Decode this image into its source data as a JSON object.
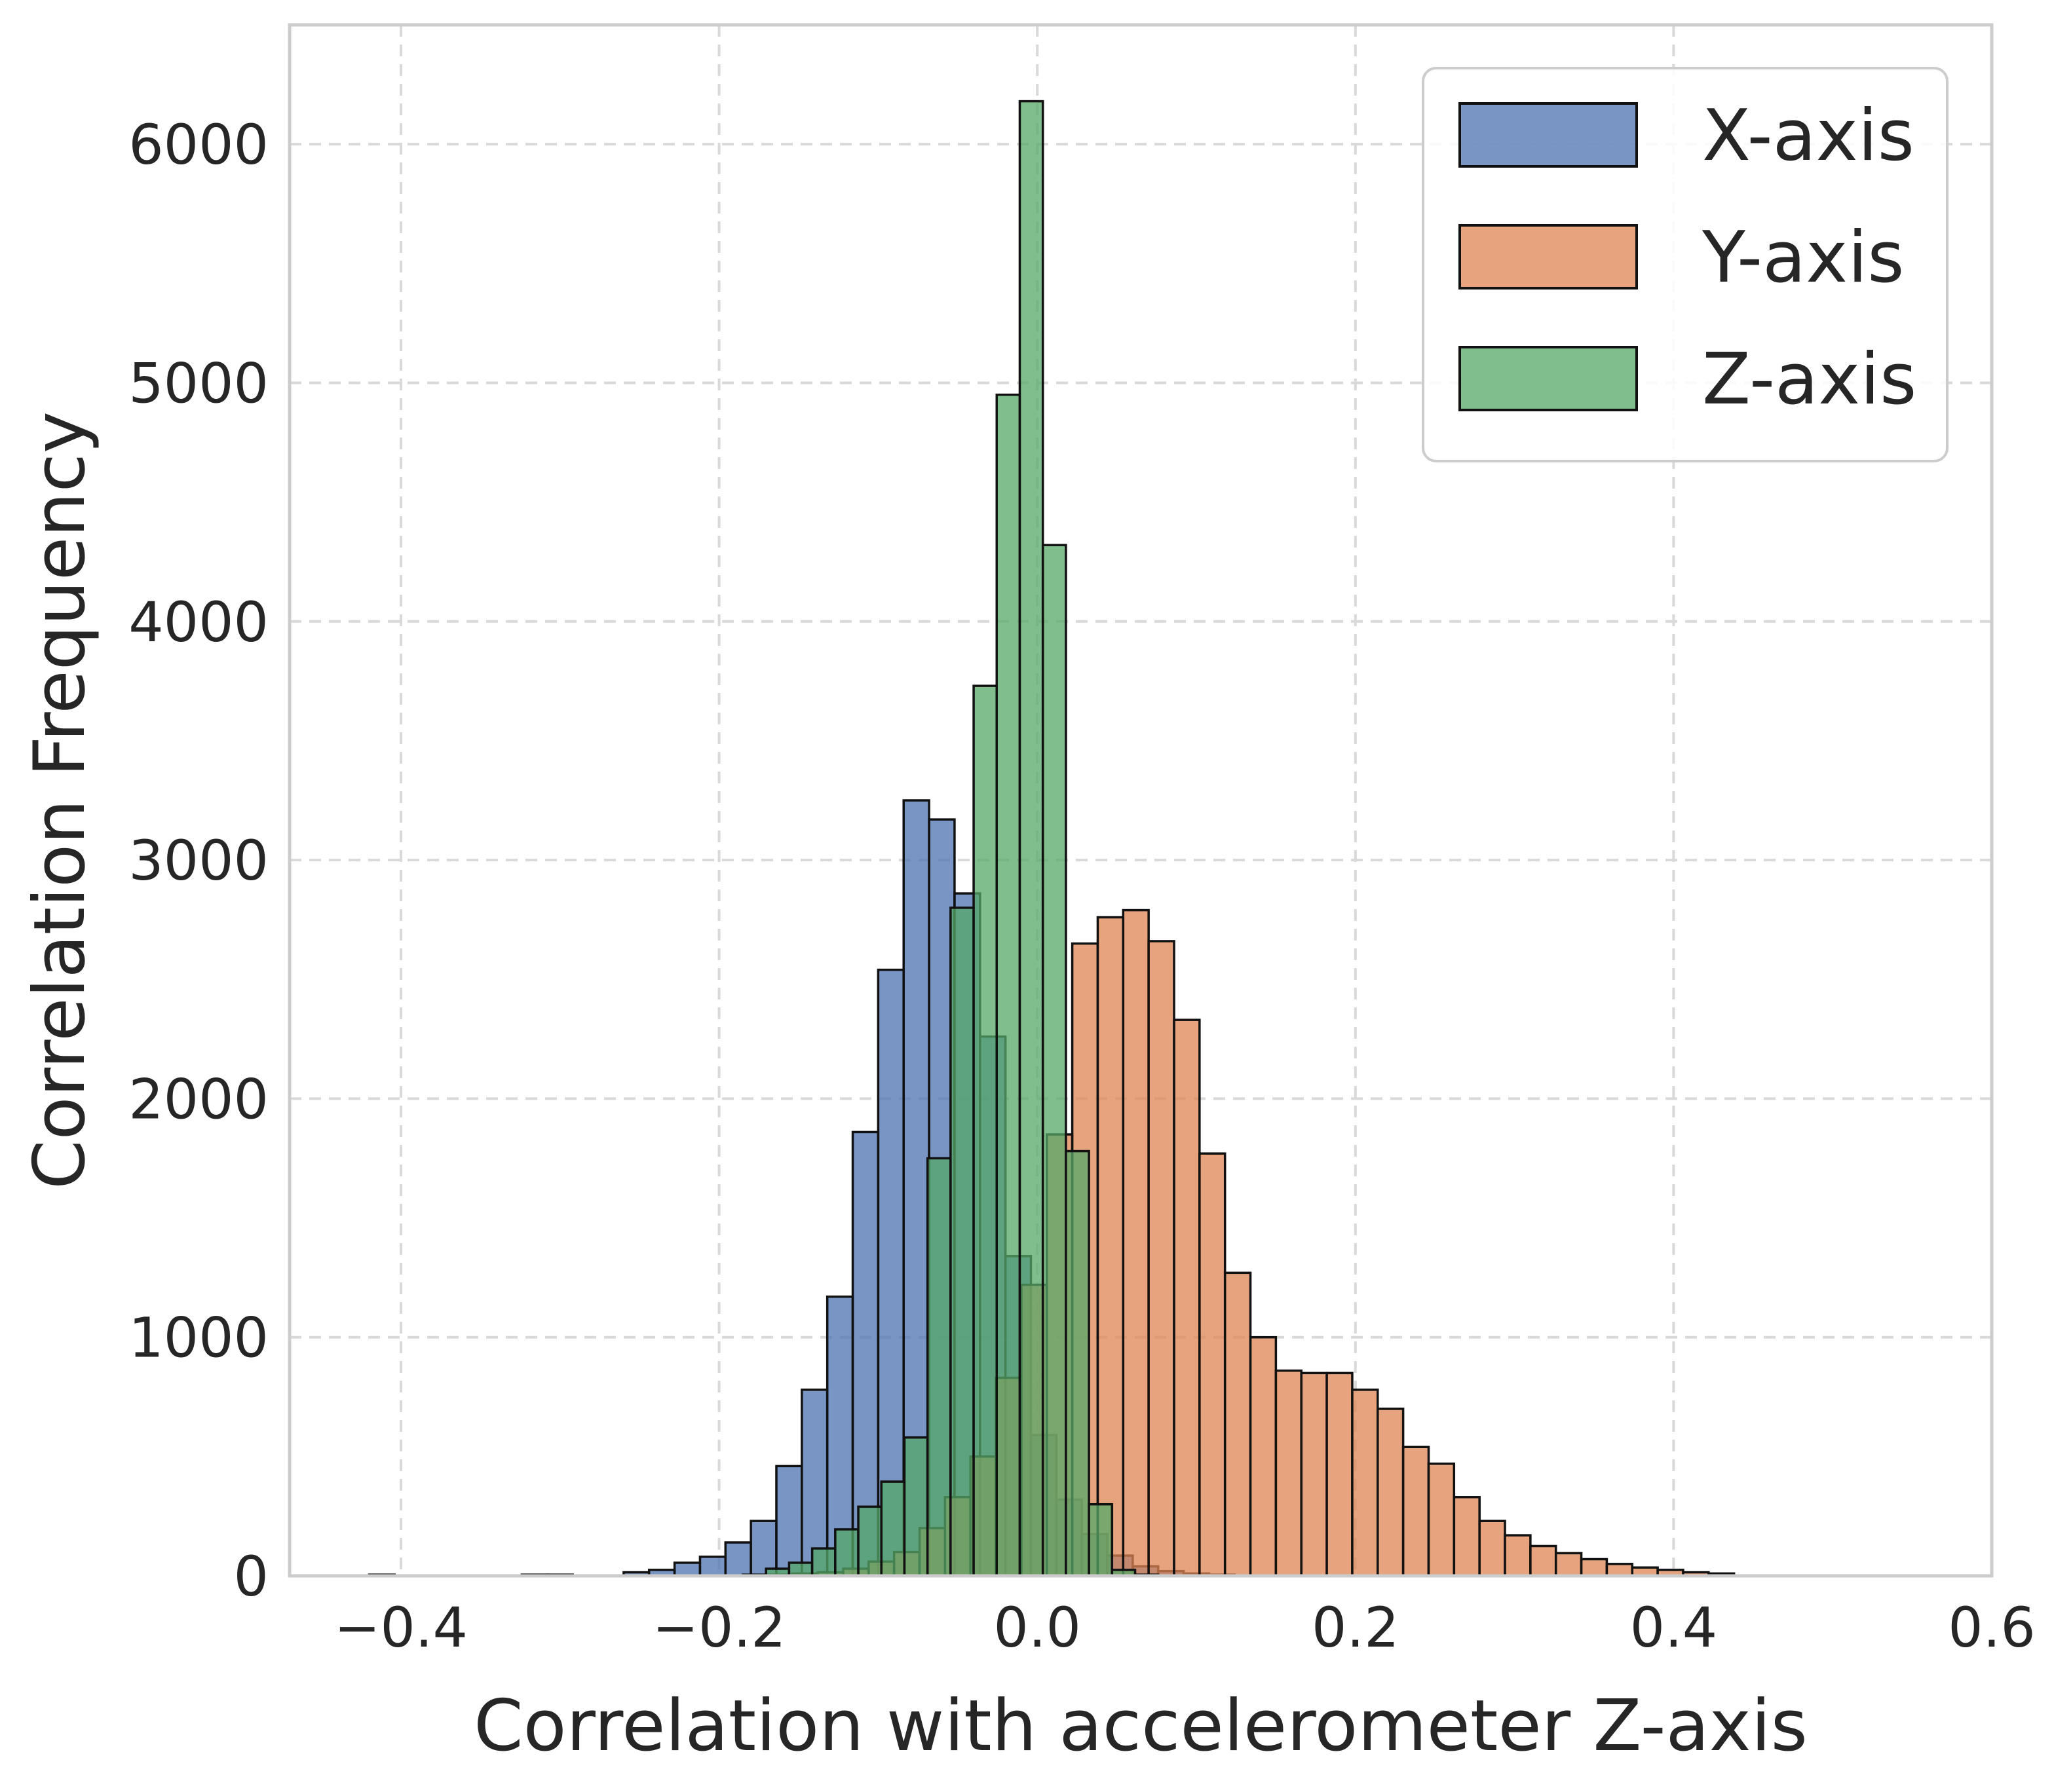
{
  "chart_data": {
    "type": "histogram",
    "xlabel": "Correlation with accelerometer Z-axis",
    "ylabel": "Correlation Frequency",
    "xlim": [
      -0.47,
      0.6
    ],
    "ylim": [
      0,
      6500
    ],
    "x_ticks": [
      -0.4,
      -0.2,
      0.0,
      0.2,
      0.4,
      0.6
    ],
    "x_tick_labels": [
      "−0.4",
      "−0.2",
      "0.0",
      "0.2",
      "0.4",
      "0.6"
    ],
    "y_ticks": [
      0,
      1000,
      2000,
      3000,
      4000,
      5000,
      6000
    ],
    "y_tick_labels": [
      "0",
      "1000",
      "2000",
      "3000",
      "4000",
      "5000",
      "6000"
    ],
    "grid": true,
    "legend_position": "top-right",
    "series": [
      {
        "name": "X-axis",
        "color": "#4c72b0",
        "opacity": 0.75,
        "bin_start": -0.42,
        "bin_width": 0.016,
        "values": [
          5,
          0,
          0,
          0,
          0,
          0,
          5,
          5,
          0,
          0,
          15,
          25,
          55,
          80,
          140,
          230,
          460,
          780,
          1170,
          1860,
          2540,
          3250,
          3170,
          2860,
          2260,
          1340,
          590,
          320,
          175,
          85,
          40,
          20,
          10,
          5
        ]
      },
      {
        "name": "Y-axis",
        "color": "#dd8452",
        "opacity": 0.75,
        "bin_start": -0.17,
        "bin_width": 0.016,
        "values": [
          5,
          10,
          15,
          30,
          60,
          100,
          200,
          330,
          500,
          830,
          1220,
          1850,
          2650,
          2760,
          2790,
          2660,
          2330,
          1770,
          1270,
          1000,
          860,
          850,
          850,
          780,
          700,
          540,
          470,
          330,
          230,
          170,
          125,
          95,
          70,
          50,
          35,
          25,
          15,
          10
        ]
      },
      {
        "name": "Z-axis",
        "color": "#55a868",
        "opacity": 0.75,
        "bin_start": -0.185,
        "bin_width": 0.0145,
        "values": [
          5,
          30,
          55,
          115,
          195,
          290,
          395,
          580,
          1750,
          2800,
          3730,
          4950,
          6180,
          4320,
          1780,
          300,
          25,
          5
        ]
      }
    ]
  }
}
